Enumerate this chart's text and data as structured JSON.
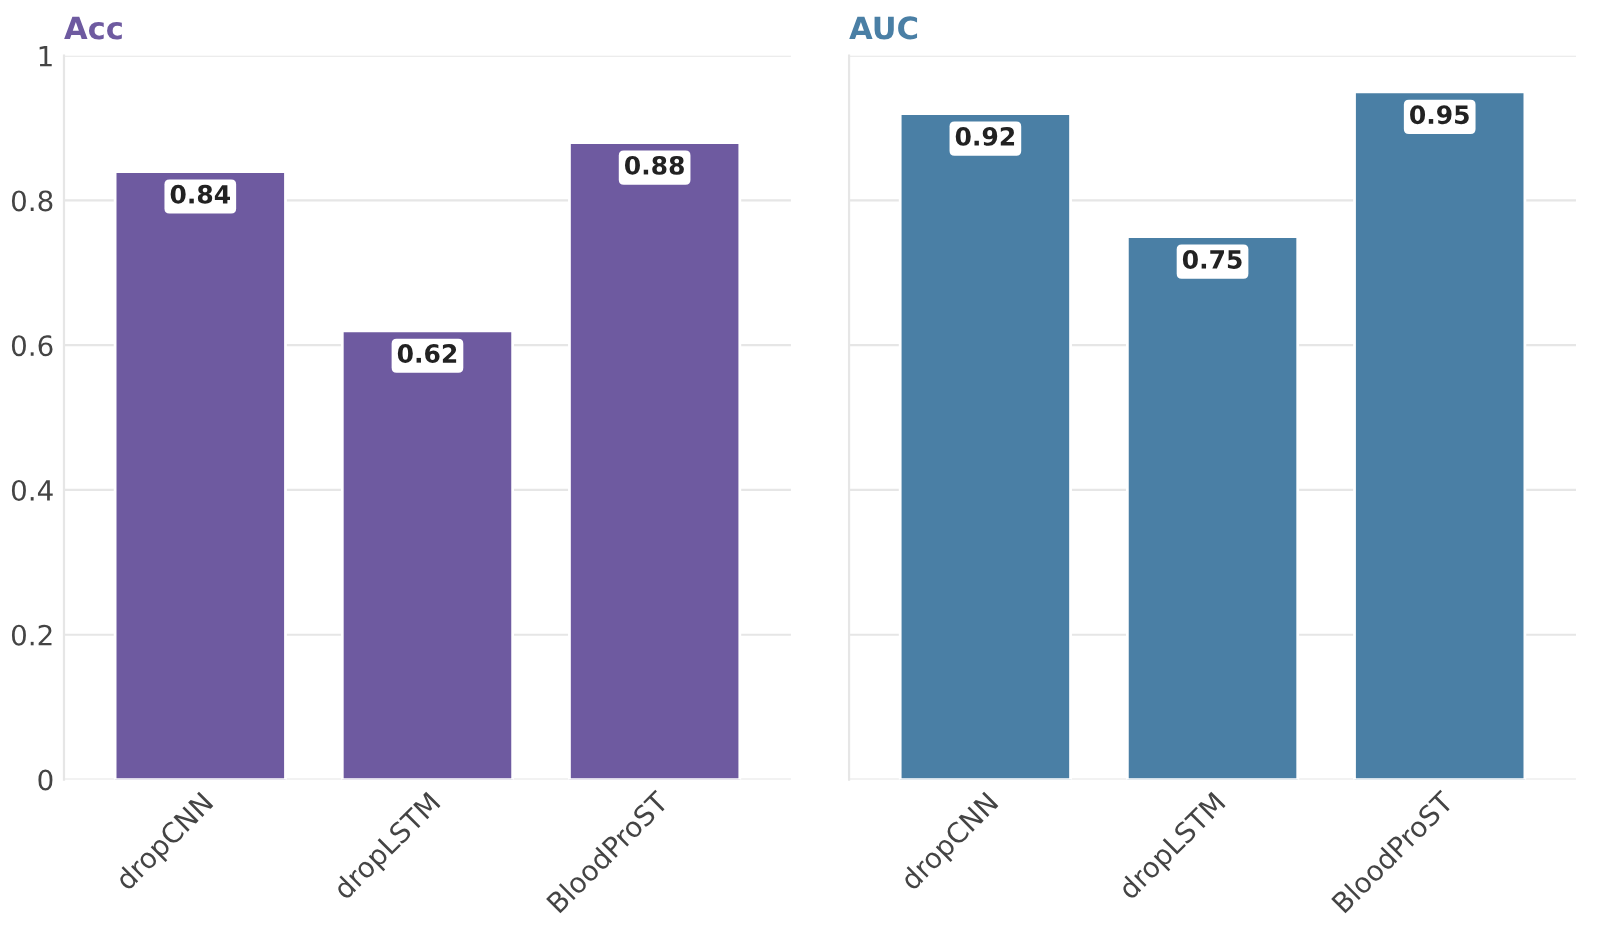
{
  "chart_data": [
    {
      "type": "bar",
      "title": "Acc",
      "categories": [
        "dropCNN",
        "dropLSTM",
        "BloodProST"
      ],
      "series": [
        {
          "color": "#6e5aa0",
          "values": [
            0.84,
            0.62,
            0.88
          ]
        }
      ],
      "ylim": [
        0,
        1
      ],
      "yticks": [
        0,
        0.2,
        0.4,
        0.6,
        0.8,
        1
      ],
      "grid": "y",
      "data_labels": true
    },
    {
      "type": "bar",
      "title": "AUC",
      "categories": [
        "dropCNN",
        "dropLSTM",
        "BloodProST"
      ],
      "series": [
        {
          "color": "#4a7fa5",
          "values": [
            0.92,
            0.75,
            0.95
          ]
        }
      ],
      "ylim": [
        0,
        1
      ],
      "yticks": [
        0,
        0.2,
        0.4,
        0.6,
        0.8,
        1
      ],
      "grid": "y",
      "data_labels": true,
      "tick_labels": "x"
    }
  ]
}
